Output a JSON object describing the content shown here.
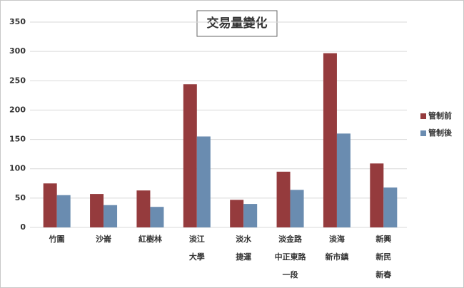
{
  "chart_data": {
    "type": "bar",
    "title": "交易量變化",
    "categories": [
      [
        "竹圍"
      ],
      [
        "沙崙"
      ],
      [
        "紅樹林"
      ],
      [
        "淡江",
        "大學"
      ],
      [
        "淡水",
        "捷運"
      ],
      [
        "淡金路",
        "中正東路",
        "一段"
      ],
      [
        "淡海",
        "新市鎮"
      ],
      [
        "新興",
        "新民",
        "新春"
      ]
    ],
    "series": [
      {
        "name": "管制前",
        "color": "#953b3d",
        "values": [
          75,
          57,
          63,
          244,
          47,
          95,
          297,
          109
        ]
      },
      {
        "name": "管制後",
        "color": "#6a8cb0",
        "values": [
          55,
          38,
          35,
          155,
          40,
          64,
          160,
          68
        ]
      }
    ],
    "ylim": [
      0,
      350
    ],
    "yticks": [
      0,
      50,
      100,
      150,
      200,
      250,
      300,
      350
    ],
    "grid": true,
    "legend": "right"
  }
}
